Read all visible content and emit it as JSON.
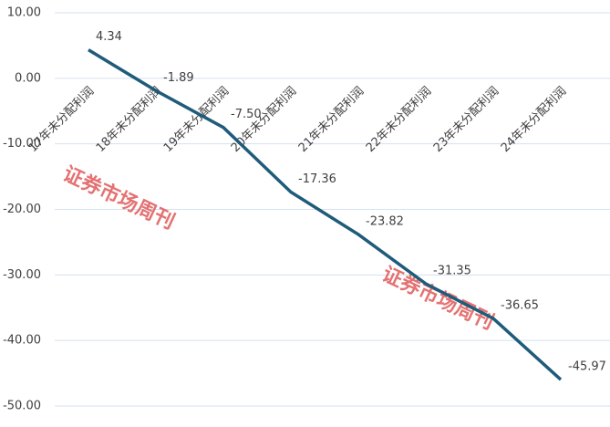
{
  "chart_data": {
    "type": "line",
    "categories": [
      "17年未分配利润",
      "18年未分配利润",
      "19年未分配利润",
      "20年未分配利润",
      "21年未分配利润",
      "22年未分配利润",
      "23年未分配利润",
      "24年未分配利润"
    ],
    "values": [
      4.34,
      -1.89,
      -7.5,
      -17.36,
      -23.82,
      -31.35,
      -36.65,
      -45.97
    ],
    "value_labels": [
      "4.34",
      "-1.89",
      "-7.50",
      "-17.36",
      "-23.82",
      "-31.35",
      "-36.65",
      "-45.97"
    ],
    "color": "#1f5b7a",
    "ylim": [
      -50,
      10
    ],
    "yticks": [
      {
        "value": -50,
        "label": "-50.00"
      },
      {
        "value": -40,
        "label": "-40.00"
      },
      {
        "value": -30,
        "label": "-30.00"
      },
      {
        "value": -20,
        "label": "-20.00"
      },
      {
        "value": -10,
        "label": "-10.00"
      },
      {
        "value": 0,
        "label": "0.00"
      },
      {
        "value": 10,
        "label": "10.00"
      }
    ],
    "grid": true,
    "watermark": "证券市场周刊"
  }
}
